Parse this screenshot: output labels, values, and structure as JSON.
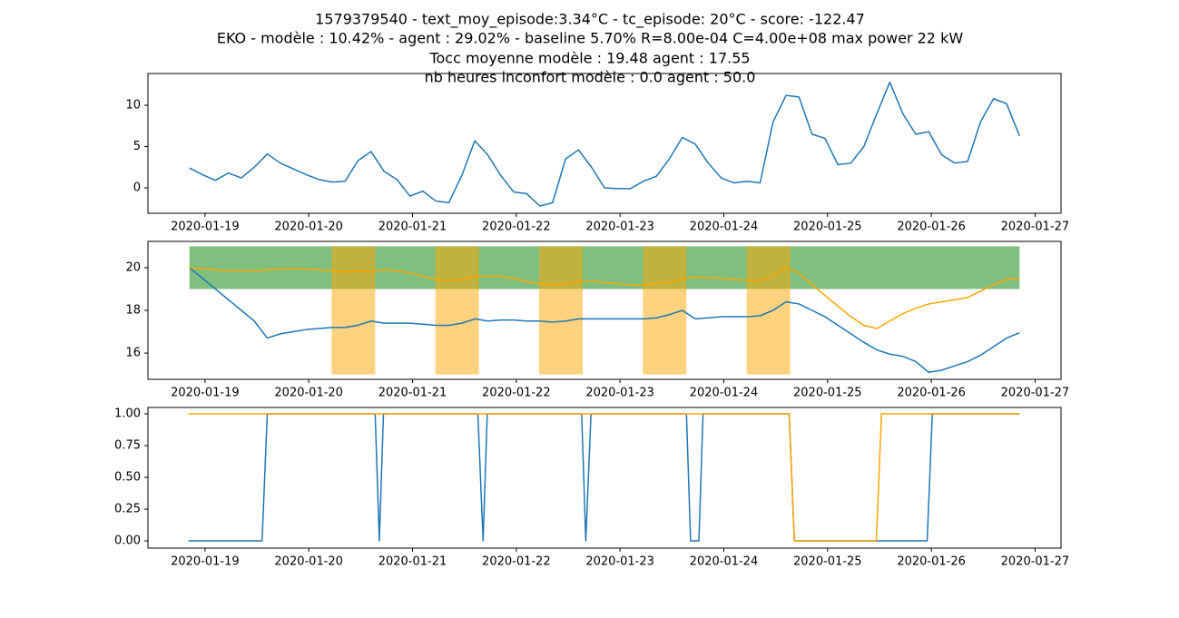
{
  "title": [
    "1579379540 - text_moy_episode:3.34°C - tc_episode: 20°C - score: -122.47",
    "EKO - modèle : 10.42% - agent : 29.02% - baseline 5.70% R=8.00e-04 C=4.00e+08 max power 22 kW",
    "Tocc moyenne modèle : 19.48 agent : 17.55",
    "nb heures inconfort modèle : 0.0 agent : 50.0"
  ],
  "chart_data": [
    {
      "type": "line",
      "xlim": [
        18279.45,
        18288.25
      ],
      "ylim": [
        -3.08,
        13.85
      ],
      "yticks": [
        0,
        5,
        10
      ],
      "xticks": [
        {
          "value": 18280,
          "label": "2020-01-19"
        },
        {
          "value": 18281,
          "label": "2020-01-20"
        },
        {
          "value": 18282,
          "label": "2020-01-21"
        },
        {
          "value": 18283,
          "label": "2020-01-22"
        },
        {
          "value": 18284,
          "label": "2020-01-23"
        },
        {
          "value": 18285,
          "label": "2020-01-24"
        },
        {
          "value": 18286,
          "label": "2020-01-25"
        },
        {
          "value": 18287,
          "label": "2020-01-26"
        },
        {
          "value": 18288,
          "label": "2020-01-27"
        }
      ],
      "x": [
        18279.85,
        18279.975,
        18280.1,
        18280.225,
        18280.35,
        18280.475,
        18280.6,
        18280.725,
        18280.85,
        18280.975,
        18281.1,
        18281.225,
        18281.35,
        18281.475,
        18281.6,
        18281.725,
        18281.85,
        18281.975,
        18282.1,
        18282.225,
        18282.35,
        18282.475,
        18282.6,
        18282.725,
        18282.85,
        18282.975,
        18283.1,
        18283.225,
        18283.35,
        18283.475,
        18283.6,
        18283.725,
        18283.85,
        18283.975,
        18284.1,
        18284.225,
        18284.35,
        18284.475,
        18284.6,
        18284.725,
        18284.85,
        18284.975,
        18285.1,
        18285.225,
        18285.35,
        18285.475,
        18285.6,
        18285.725,
        18285.85,
        18285.975,
        18286.1,
        18286.225,
        18286.35,
        18286.475,
        18286.6,
        18286.725,
        18286.85,
        18286.975,
        18287.1,
        18287.225,
        18287.35,
        18287.475,
        18287.6,
        18287.725,
        18287.85
      ],
      "series": [
        {
          "color": "#1f77b4",
          "values": [
            2.4,
            1.6,
            0.9,
            1.8,
            1.2,
            2.5,
            4.1,
            3.0,
            2.3,
            1.6,
            1.0,
            0.7,
            0.8,
            3.3,
            4.4,
            2.0,
            1.0,
            -1.0,
            -0.4,
            -1.6,
            -1.8,
            1.5,
            5.7,
            4.0,
            1.5,
            -0.5,
            -0.7,
            -2.2,
            -1.8,
            3.5,
            4.6,
            2.5,
            0.0,
            -0.1,
            -0.1,
            0.8,
            1.4,
            3.5,
            6.1,
            5.3,
            3.0,
            1.2,
            0.6,
            0.8,
            0.6,
            8.0,
            11.2,
            11.0,
            6.5,
            6.0,
            2.8,
            3.0,
            5.0,
            9.0,
            12.8,
            9.0,
            6.5,
            6.8,
            4.0,
            3.0,
            3.2,
            8.0,
            10.8,
            10.2,
            6.3
          ]
        }
      ]
    },
    {
      "type": "line",
      "xlim": [
        18279.45,
        18288.25
      ],
      "ylim": [
        14.77,
        21.23
      ],
      "yticks": [
        16,
        18,
        20
      ],
      "xticks": [
        {
          "value": 18280,
          "label": "2020-01-19"
        },
        {
          "value": 18281,
          "label": "2020-01-20"
        },
        {
          "value": 18282,
          "label": "2020-01-21"
        },
        {
          "value": 18283,
          "label": "2020-01-22"
        },
        {
          "value": 18284,
          "label": "2020-01-23"
        },
        {
          "value": 18285,
          "label": "2020-01-24"
        },
        {
          "value": 18286,
          "label": "2020-01-25"
        },
        {
          "value": 18287,
          "label": "2020-01-26"
        },
        {
          "value": 18288,
          "label": "2020-01-27"
        }
      ],
      "spans": [
        {
          "x": [
            18279.85,
            18287.85
          ],
          "y": [
            19,
            21
          ],
          "color": "#008000",
          "alpha": 0.5
        },
        {
          "x": [
            18281.22,
            18281.64
          ],
          "y": [
            15,
            21
          ],
          "color": "#ffa500",
          "alpha": 0.5
        },
        {
          "x": [
            18282.22,
            18282.64
          ],
          "y": [
            15,
            21
          ],
          "color": "#ffa500",
          "alpha": 0.5
        },
        {
          "x": [
            18283.22,
            18283.64
          ],
          "y": [
            15,
            21
          ],
          "color": "#ffa500",
          "alpha": 0.5
        },
        {
          "x": [
            18284.22,
            18284.64
          ],
          "y": [
            15,
            21
          ],
          "color": "#ffa500",
          "alpha": 0.5
        },
        {
          "x": [
            18285.22,
            18285.64
          ],
          "y": [
            15,
            21
          ],
          "color": "#ffa500",
          "alpha": 0.5
        }
      ],
      "x": [
        18279.85,
        18279.975,
        18280.1,
        18280.225,
        18280.35,
        18280.475,
        18280.6,
        18280.725,
        18280.85,
        18280.975,
        18281.1,
        18281.225,
        18281.35,
        18281.475,
        18281.6,
        18281.725,
        18281.85,
        18281.975,
        18282.1,
        18282.225,
        18282.35,
        18282.475,
        18282.6,
        18282.725,
        18282.85,
        18282.975,
        18283.1,
        18283.225,
        18283.35,
        18283.475,
        18283.6,
        18283.725,
        18283.85,
        18283.975,
        18284.1,
        18284.225,
        18284.35,
        18284.475,
        18284.6,
        18284.725,
        18284.85,
        18284.975,
        18285.1,
        18285.225,
        18285.35,
        18285.475,
        18285.6,
        18285.725,
        18285.85,
        18285.975,
        18286.1,
        18286.225,
        18286.35,
        18286.475,
        18286.6,
        18286.725,
        18286.85,
        18286.975,
        18287.1,
        18287.225,
        18287.35,
        18287.475,
        18287.6,
        18287.725,
        18287.85
      ],
      "series": [
        {
          "color": "#1f77b4",
          "values": [
            20.0,
            19.5,
            19.0,
            18.5,
            18.0,
            17.5,
            16.7,
            16.9,
            17.0,
            17.1,
            17.15,
            17.2,
            17.2,
            17.3,
            17.5,
            17.4,
            17.4,
            17.4,
            17.35,
            17.3,
            17.3,
            17.4,
            17.6,
            17.5,
            17.55,
            17.55,
            17.5,
            17.5,
            17.45,
            17.5,
            17.6,
            17.6,
            17.6,
            17.6,
            17.6,
            17.6,
            17.65,
            17.8,
            18.0,
            17.6,
            17.65,
            17.7,
            17.7,
            17.7,
            17.75,
            18.0,
            18.4,
            18.3,
            18.0,
            17.7,
            17.3,
            16.9,
            16.5,
            16.15,
            15.95,
            15.85,
            15.6,
            15.1,
            15.2,
            15.4,
            15.6,
            15.9,
            16.3,
            16.7,
            16.95
          ]
        },
        {
          "color": "#ffa500",
          "values": [
            20.0,
            19.95,
            19.9,
            19.85,
            19.85,
            19.85,
            19.9,
            19.95,
            19.95,
            19.95,
            19.9,
            19.85,
            19.8,
            19.85,
            19.8,
            19.9,
            19.85,
            19.75,
            19.6,
            19.45,
            19.4,
            19.45,
            19.6,
            19.6,
            19.6,
            19.5,
            19.35,
            19.25,
            19.2,
            19.25,
            19.35,
            19.35,
            19.3,
            19.25,
            19.2,
            19.2,
            19.25,
            19.3,
            19.5,
            19.55,
            19.55,
            19.5,
            19.45,
            19.4,
            19.4,
            19.6,
            20.0,
            19.75,
            19.2,
            18.7,
            18.2,
            17.7,
            17.3,
            17.15,
            17.5,
            17.85,
            18.1,
            18.3,
            18.4,
            18.5,
            18.6,
            18.9,
            19.2,
            19.45,
            19.5
          ]
        }
      ]
    },
    {
      "type": "line",
      "xlim": [
        18279.45,
        18288.25
      ],
      "ylim": [
        -0.057,
        1.05
      ],
      "yticks": [
        {
          "value": 0,
          "label": "0.00"
        },
        {
          "value": 0.25,
          "label": "0.25"
        },
        {
          "value": 0.5,
          "label": "0.50"
        },
        {
          "value": 0.75,
          "label": "0.75"
        },
        {
          "value": 1,
          "label": "1.00"
        }
      ],
      "xticks": [
        {
          "value": 18280,
          "label": "2020-01-19"
        },
        {
          "value": 18281,
          "label": "2020-01-20"
        },
        {
          "value": 18282,
          "label": "2020-01-21"
        },
        {
          "value": 18283,
          "label": "2020-01-22"
        },
        {
          "value": 18284,
          "label": "2020-01-23"
        },
        {
          "value": 18285,
          "label": "2020-01-24"
        },
        {
          "value": 18286,
          "label": "2020-01-25"
        },
        {
          "value": 18287,
          "label": "2020-01-26"
        },
        {
          "value": 18288,
          "label": "2020-01-27"
        }
      ],
      "series": [
        {
          "color": "#1f77b4",
          "x": [
            18279.84,
            18280.55,
            18280.6,
            18281.64,
            18281.68,
            18281.72,
            18282.63,
            18282.68,
            18282.72,
            18283.63,
            18283.67,
            18283.72,
            18284.64,
            18284.68,
            18284.76,
            18284.8,
            18285.63,
            18285.68,
            18286.96,
            18287.01,
            18287.85
          ],
          "values": [
            0,
            0,
            1,
            1,
            0,
            1,
            1,
            0,
            1,
            1,
            0,
            1,
            1,
            0,
            0,
            1,
            1,
            0,
            0,
            1,
            1
          ]
        },
        {
          "color": "#ffa500",
          "x": [
            18279.84,
            18285.63,
            18285.68,
            18286.47,
            18286.52,
            18287.85
          ],
          "values": [
            1,
            1,
            0,
            0,
            1,
            1
          ]
        }
      ]
    }
  ]
}
